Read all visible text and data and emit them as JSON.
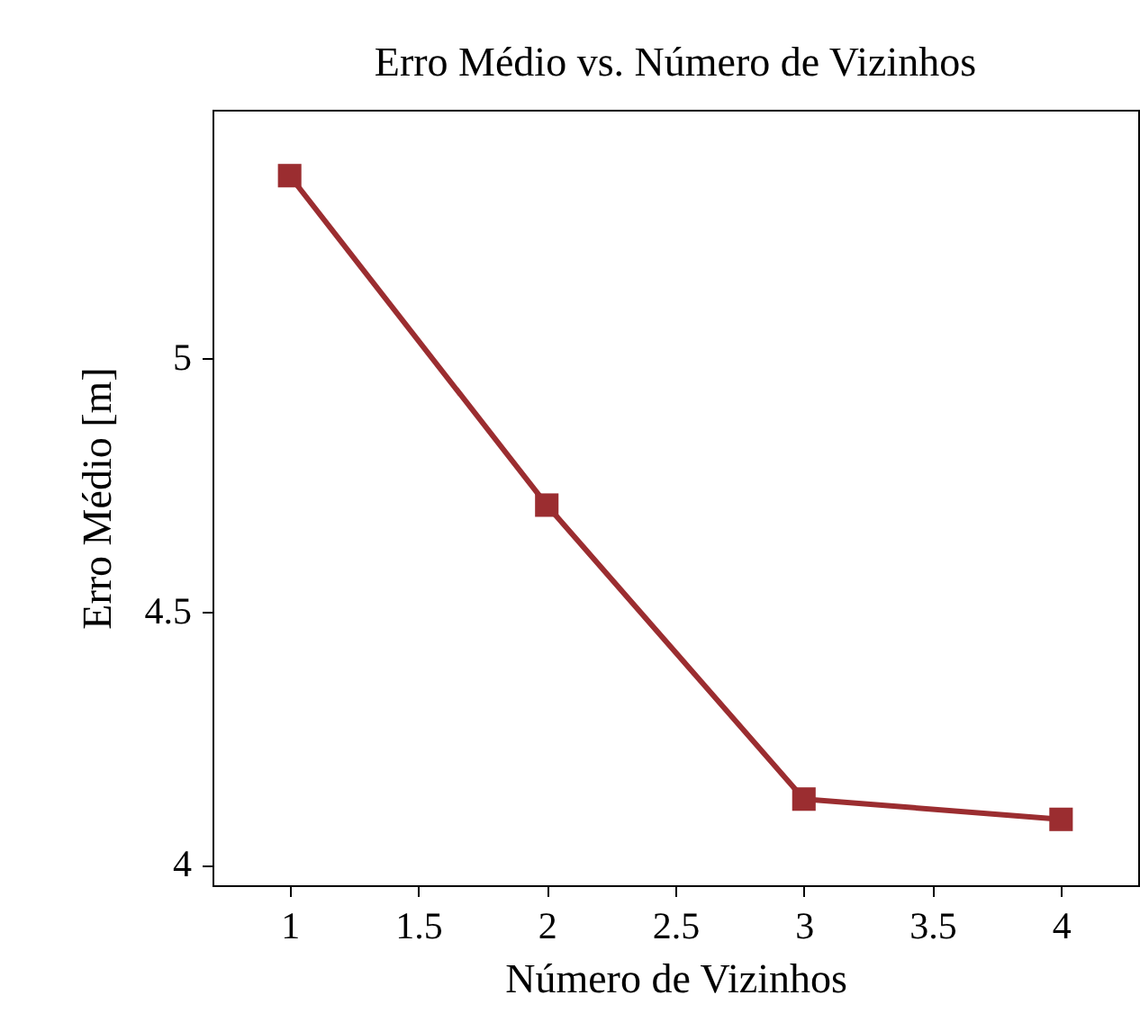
{
  "chart_data": {
    "type": "line",
    "title": "Erro Médio vs. Número de Vizinhos",
    "xlabel": "Número de Vizinhos",
    "ylabel": "Erro Médio [m]",
    "x": [
      1,
      2,
      3,
      4
    ],
    "series": [
      {
        "color": "#9b2d30",
        "values": [
          5.36,
          4.71,
          4.13,
          4.09
        ]
      }
    ],
    "xlim": [
      0.7,
      4.3
    ],
    "xticks": [
      1,
      1.5,
      2,
      2.5,
      3,
      3.5,
      4
    ],
    "ylim": [
      3.96,
      5.49
    ],
    "yticks": [
      4,
      4.5,
      5
    ],
    "marker": "square",
    "line_style": "solid",
    "grid": false
  }
}
